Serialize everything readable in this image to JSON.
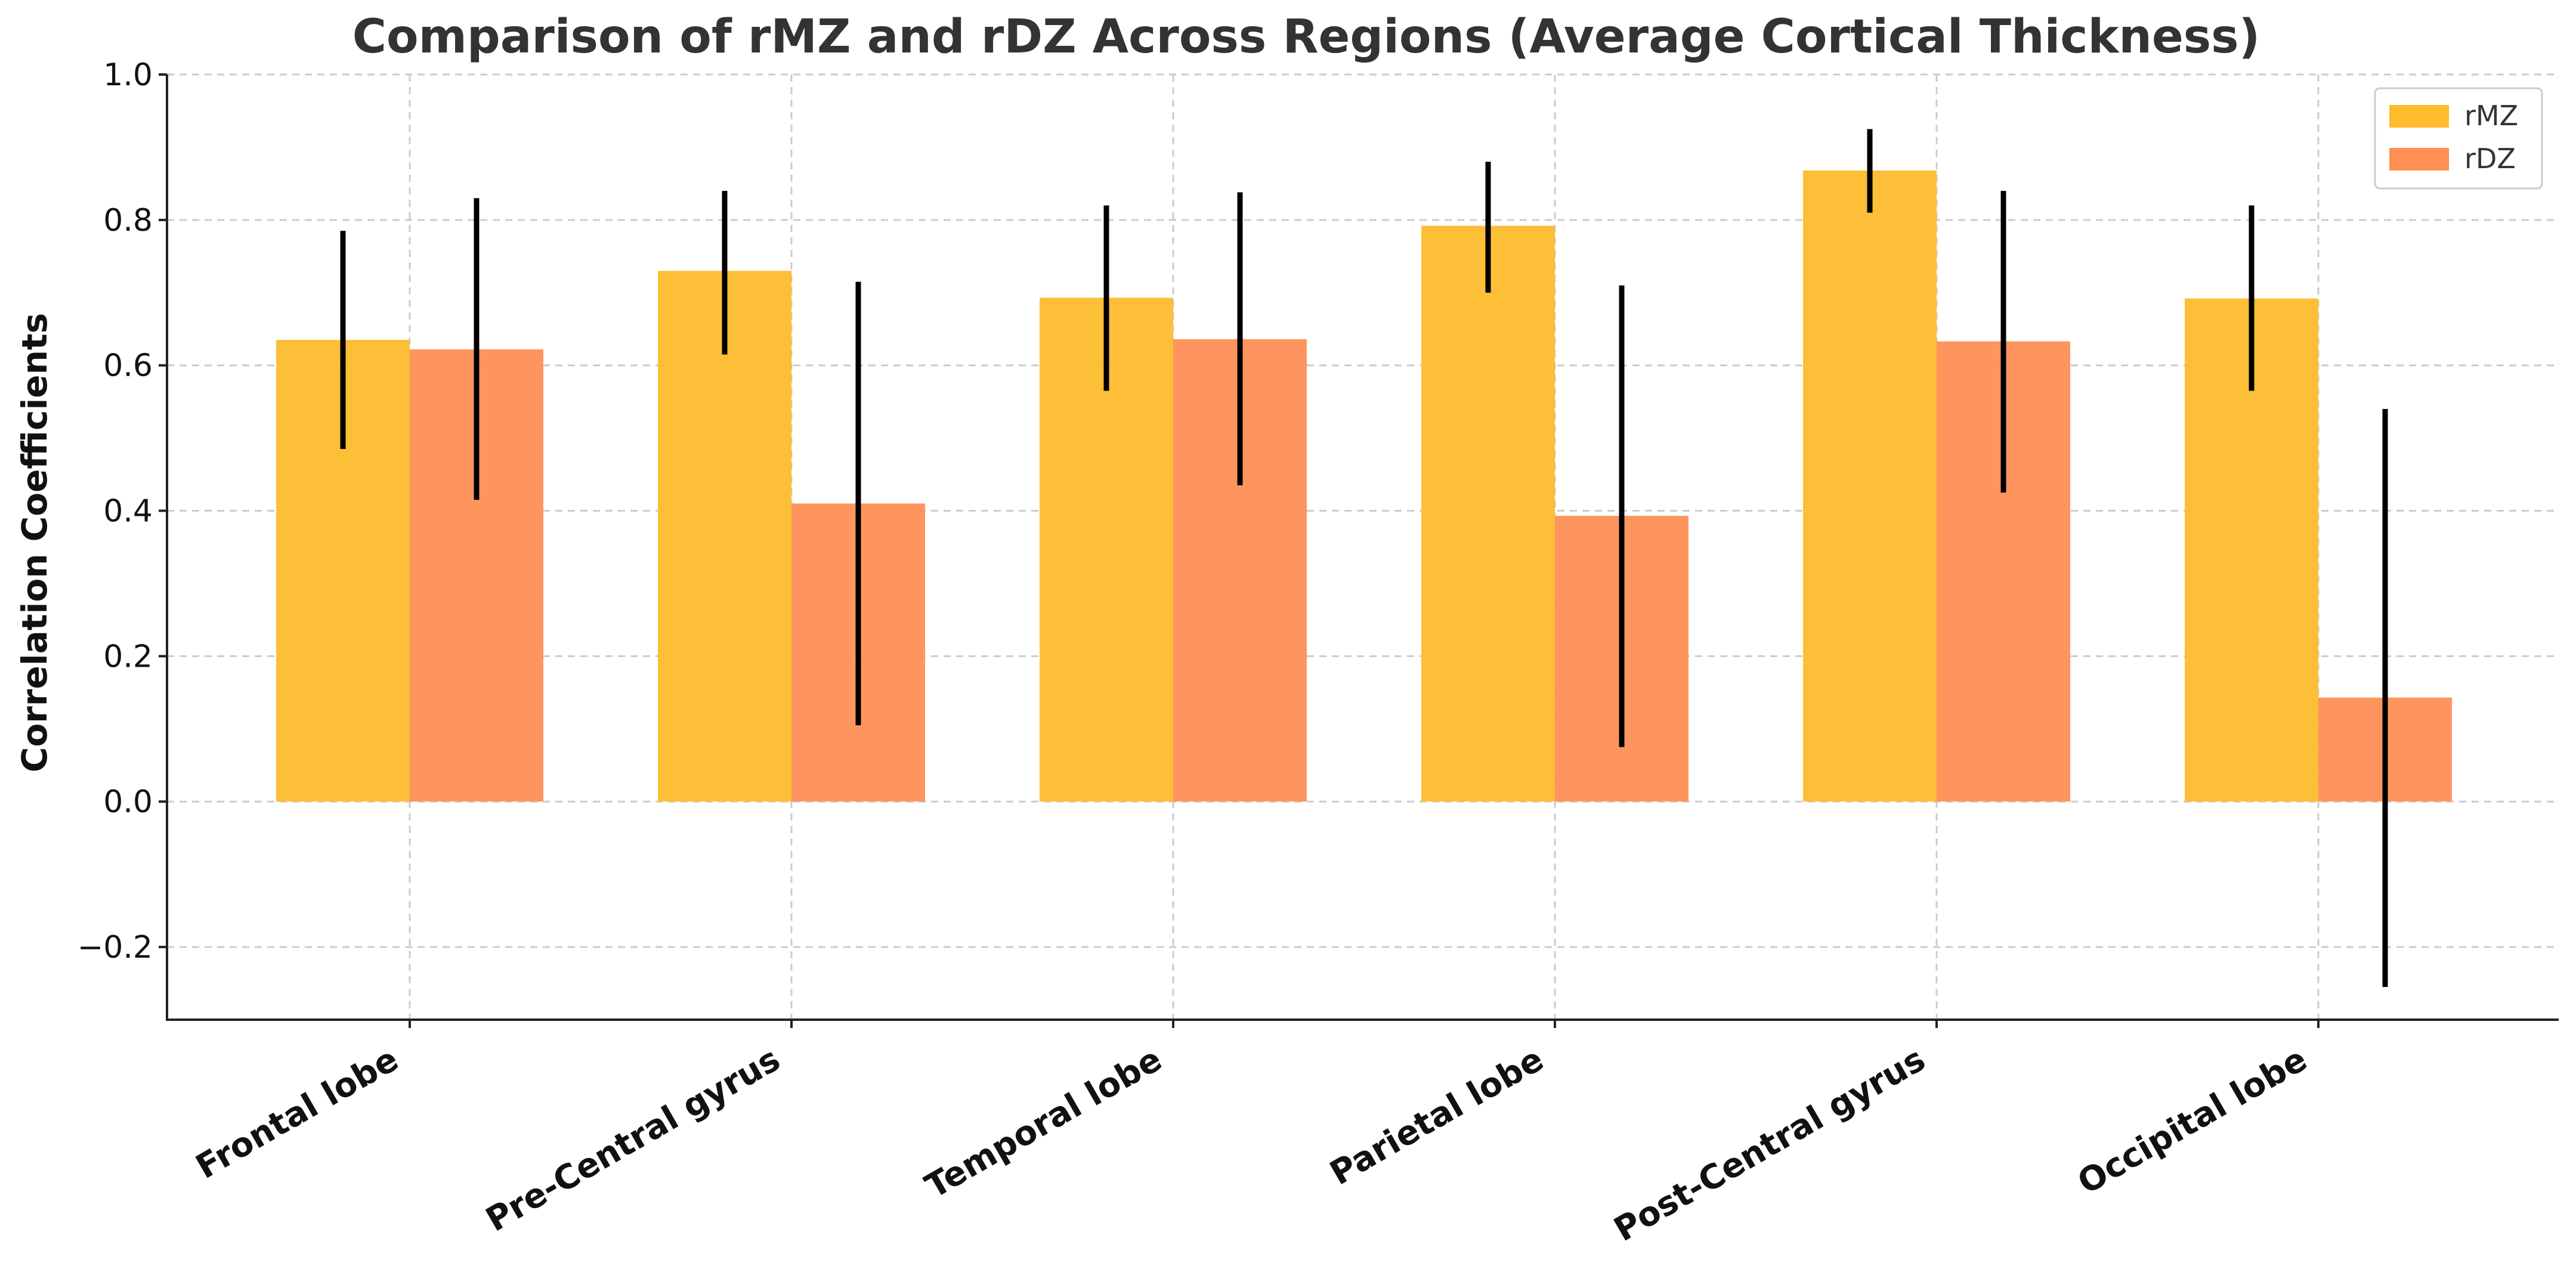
{
  "chart_data": {
    "type": "bar",
    "title": "Comparison of rMZ and rDZ Across Regions (Average Cortical Thickness)",
    "xlabel": "",
    "ylabel": "Correlation Coefficients",
    "ylim": [
      -0.3,
      1.0
    ],
    "yticks": [
      -0.2,
      0.0,
      0.2,
      0.4,
      0.6,
      0.8,
      1.0
    ],
    "ytick_labels": [
      "−0.2",
      "0.0",
      "0.2",
      "0.4",
      "0.6",
      "0.8",
      "1.0"
    ],
    "categories": [
      "Frontal lobe",
      "Pre-Central gyrus",
      "Temporal lobe",
      "Parietal lobe",
      "Post-Central gyrus",
      "Occipital lobe"
    ],
    "series": [
      {
        "name": "rMZ",
        "color": "#FDBB2D",
        "values": [
          0.635,
          0.73,
          0.693,
          0.792,
          0.868,
          0.692
        ],
        "error_low": [
          0.485,
          0.615,
          0.565,
          0.7,
          0.81,
          0.565
        ],
        "error_high": [
          0.785,
          0.84,
          0.82,
          0.88,
          0.925,
          0.82
        ]
      },
      {
        "name": "rDZ",
        "color": "#FF8F55",
        "values": [
          0.622,
          0.41,
          0.636,
          0.393,
          0.633,
          0.143
        ],
        "error_low": [
          0.415,
          0.105,
          0.435,
          0.075,
          0.425,
          -0.255
        ],
        "error_high": [
          0.83,
          0.715,
          0.838,
          0.71,
          0.84,
          0.54
        ]
      }
    ],
    "grid": true,
    "legend_position": "top-right"
  }
}
